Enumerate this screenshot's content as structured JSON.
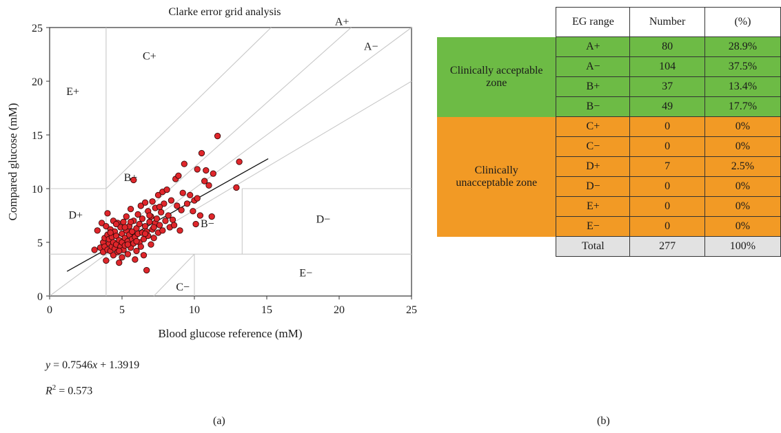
{
  "colors": {
    "acceptable": "#6dbb45",
    "unacceptable": "#f29a25",
    "total": "#e2e2e2",
    "point": "#e0262b",
    "grid": "#c8c8c8"
  },
  "chart_data": {
    "type": "scatter",
    "title": "Clarke error grid analysis",
    "xlabel": "Blood glucose reference (mM)",
    "ylabel": "Compared glucose (mM)",
    "xlim": [
      0,
      25
    ],
    "ylim": [
      0,
      25
    ],
    "xticks": [
      0,
      5,
      10,
      15,
      20,
      25
    ],
    "yticks": [
      0,
      5,
      10,
      15,
      20,
      25
    ],
    "zone_labels": [
      {
        "label": "A+",
        "x": 20.2,
        "y": 25.6
      },
      {
        "label": "A−",
        "x": 22.2,
        "y": 23.3
      },
      {
        "label": "C+",
        "x": 6.9,
        "y": 22.4
      },
      {
        "label": "E+",
        "x": 1.6,
        "y": 19.1
      },
      {
        "label": "B+",
        "x": 5.6,
        "y": 11.1
      },
      {
        "label": "D+",
        "x": 1.8,
        "y": 7.6
      },
      {
        "label": "B−",
        "x": 10.9,
        "y": 6.8
      },
      {
        "label": "D−",
        "x": 18.9,
        "y": 7.2
      },
      {
        "label": "E−",
        "x": 17.7,
        "y": 2.2
      },
      {
        "label": "C−",
        "x": 9.2,
        "y": 0.9
      }
    ],
    "regression": {
      "slope": 0.7546,
      "intercept": 1.3919,
      "x_range": [
        1.2,
        15.1
      ]
    },
    "points": [
      [
        3.1,
        4.3
      ],
      [
        3.3,
        6.1
      ],
      [
        3.5,
        4.5
      ],
      [
        3.6,
        6.8
      ],
      [
        3.7,
        4.1
      ],
      [
        3.7,
        5.0
      ],
      [
        3.8,
        4.6
      ],
      [
        3.8,
        5.4
      ],
      [
        3.9,
        3.3
      ],
      [
        3.9,
        6.5
      ],
      [
        4.0,
        4.3
      ],
      [
        4.0,
        5.7
      ],
      [
        4.0,
        7.7
      ],
      [
        4.1,
        4.9
      ],
      [
        4.1,
        5.3
      ],
      [
        4.2,
        4.2
      ],
      [
        4.2,
        6.2
      ],
      [
        4.3,
        4.6
      ],
      [
        4.3,
        5.5
      ],
      [
        4.4,
        3.8
      ],
      [
        4.4,
        5.0
      ],
      [
        4.4,
        7.0
      ],
      [
        4.5,
        4.4
      ],
      [
        4.5,
        6.0
      ],
      [
        4.6,
        4.8
      ],
      [
        4.6,
        5.6
      ],
      [
        4.7,
        4.1
      ],
      [
        4.7,
        6.8
      ],
      [
        4.8,
        5.2
      ],
      [
        4.8,
        3.1
      ],
      [
        4.9,
        4.6
      ],
      [
        4.9,
        6.4
      ],
      [
        5.0,
        5.0
      ],
      [
        5.0,
        5.8
      ],
      [
        5.0,
        3.6
      ],
      [
        5.1,
        4.3
      ],
      [
        5.1,
        6.9
      ],
      [
        5.2,
        5.4
      ],
      [
        5.2,
        4.7
      ],
      [
        5.3,
        6.1
      ],
      [
        5.3,
        7.4
      ],
      [
        5.4,
        5.1
      ],
      [
        5.4,
        3.9
      ],
      [
        5.5,
        5.7
      ],
      [
        5.5,
        6.5
      ],
      [
        5.6,
        4.5
      ],
      [
        5.6,
        8.1
      ],
      [
        5.7,
        5.3
      ],
      [
        5.7,
        6.0
      ],
      [
        5.8,
        4.9
      ],
      [
        5.8,
        7.0
      ],
      [
        5.9,
        5.5
      ],
      [
        5.9,
        3.4
      ],
      [
        6.0,
        6.3
      ],
      [
        6.0,
        4.2
      ],
      [
        6.1,
        5.8
      ],
      [
        6.1,
        7.6
      ],
      [
        6.2,
        5.0
      ],
      [
        6.2,
        6.7
      ],
      [
        6.3,
        4.6
      ],
      [
        6.3,
        8.4
      ],
      [
        6.4,
        5.9
      ],
      [
        6.4,
        7.2
      ],
      [
        6.5,
        5.3
      ],
      [
        6.5,
        3.8
      ],
      [
        6.6,
        6.5
      ],
      [
        6.6,
        8.7
      ],
      [
        6.7,
        2.4
      ],
      [
        6.7,
        6.0
      ],
      [
        6.8,
        7.9
      ],
      [
        6.8,
        5.6
      ],
      [
        6.9,
        6.9
      ],
      [
        7.0,
        4.8
      ],
      [
        7.0,
        7.4
      ],
      [
        7.1,
        6.2
      ],
      [
        7.1,
        8.8
      ],
      [
        7.2,
        5.4
      ],
      [
        7.3,
        6.8
      ],
      [
        7.3,
        8.2
      ],
      [
        7.4,
        7.2
      ],
      [
        7.5,
        5.9
      ],
      [
        7.5,
        9.4
      ],
      [
        7.6,
        6.6
      ],
      [
        7.7,
        7.8
      ],
      [
        7.8,
        9.7
      ],
      [
        7.8,
        6.1
      ],
      [
        7.9,
        8.6
      ],
      [
        8.0,
        7.0
      ],
      [
        8.1,
        9.9
      ],
      [
        8.2,
        7.5
      ],
      [
        8.3,
        6.4
      ],
      [
        8.4,
        8.9
      ],
      [
        8.5,
        7.1
      ],
      [
        8.6,
        6.6
      ],
      [
        8.7,
        10.9
      ],
      [
        8.8,
        8.4
      ],
      [
        8.9,
        11.2
      ],
      [
        9.0,
        6.1
      ],
      [
        9.1,
        8.0
      ],
      [
        9.2,
        9.6
      ],
      [
        9.3,
        12.3
      ],
      [
        9.5,
        8.6
      ],
      [
        9.7,
        9.4
      ],
      [
        9.9,
        7.9
      ],
      [
        10.0,
        8.9
      ],
      [
        10.1,
        6.7
      ],
      [
        10.2,
        11.8
      ],
      [
        10.2,
        9.1
      ],
      [
        10.4,
        7.5
      ],
      [
        10.5,
        13.3
      ],
      [
        10.7,
        10.7
      ],
      [
        10.8,
        11.7
      ],
      [
        11.0,
        10.3
      ],
      [
        11.2,
        7.4
      ],
      [
        11.3,
        11.4
      ],
      [
        11.6,
        14.9
      ],
      [
        12.9,
        10.1
      ],
      [
        13.1,
        12.5
      ],
      [
        5.8,
        10.8
      ],
      [
        4.6,
        6.7
      ],
      [
        5.4,
        4.8
      ],
      [
        6.0,
        5.1
      ],
      [
        5.2,
        6.4
      ],
      [
        4.8,
        4.2
      ],
      [
        6.6,
        5.8
      ],
      [
        7.2,
        6.4
      ],
      [
        4.2,
        5.9
      ],
      [
        5.6,
        6.9
      ],
      [
        6.9,
        7.5
      ],
      [
        7.6,
        8.3
      ]
    ]
  },
  "equation": {
    "y_label": "y",
    "eq_text": " = 0.7546",
    "x_label": "x",
    "eq_rest": " + 1.3919",
    "r_label": "R",
    "r_sup": "2",
    "r_text": " = 0.573"
  },
  "panel_labels": {
    "a": "(a)",
    "b": "(b)"
  },
  "table": {
    "headers": [
      "EG range",
      "Number",
      "(%)"
    ],
    "groups": [
      {
        "zone": "Clinically acceptable zone",
        "color": "acceptable",
        "rows": [
          [
            "A+",
            "80",
            "28.9%"
          ],
          [
            "A−",
            "104",
            "37.5%"
          ],
          [
            "B+",
            "37",
            "13.4%"
          ],
          [
            "B−",
            "49",
            "17.7%"
          ]
        ]
      },
      {
        "zone": "Clinically unacceptable zone",
        "color": "unacceptable",
        "rows": [
          [
            "C+",
            "0",
            "0%"
          ],
          [
            "C−",
            "0",
            "0%"
          ],
          [
            "D+",
            "7",
            "2.5%"
          ],
          [
            "D−",
            "0",
            "0%"
          ],
          [
            "E+",
            "0",
            "0%"
          ],
          [
            "E−",
            "0",
            "0%"
          ]
        ]
      }
    ],
    "total": [
      "Total",
      "277",
      "100%"
    ]
  }
}
